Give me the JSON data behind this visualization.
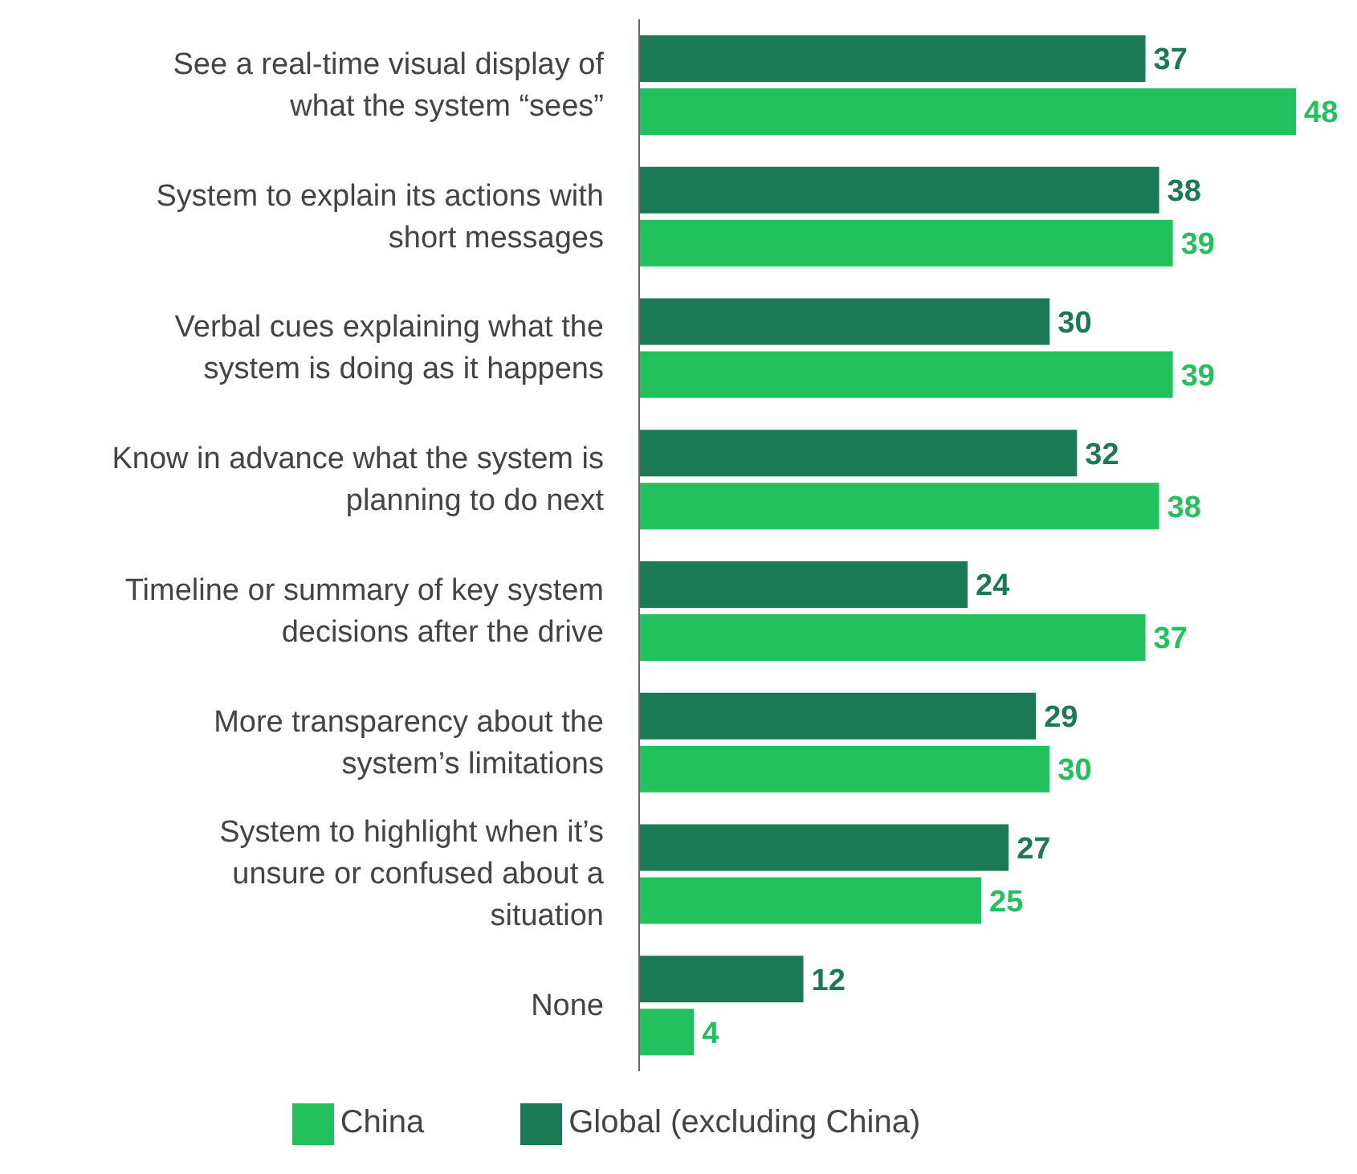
{
  "chart_data": {
    "type": "bar",
    "orientation": "horizontal",
    "categories": [
      "See a real-time visual display of what the system “sees”",
      "System to explain its actions with short messages",
      "Verbal cues explaining what the system is doing as it happens",
      "Know in advance what the system is planning to do next",
      "Timeline or summary of key system decisions after the drive",
      "More transparency about the system’s limitations",
      "System to highlight when it’s unsure or confused about a situation",
      "None"
    ],
    "series": [
      {
        "name": "Global (excluding China)",
        "color": "#1a7a55",
        "values": [
          37,
          38,
          30,
          32,
          24,
          29,
          27,
          12
        ]
      },
      {
        "name": "China",
        "color": "#22c15e",
        "values": [
          48,
          39,
          39,
          38,
          37,
          30,
          25,
          4
        ]
      }
    ],
    "data_labels": true,
    "legend": "bottom",
    "grid": false
  }
}
